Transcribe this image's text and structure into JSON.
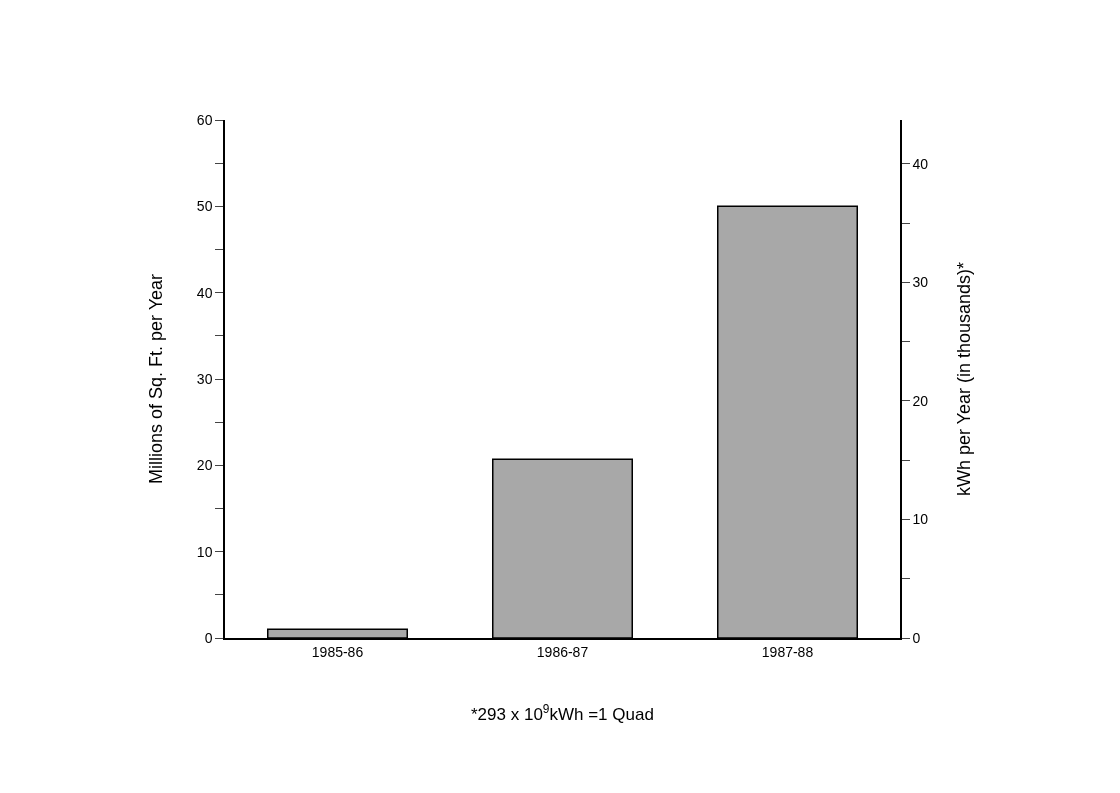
{
  "chart_data": {
    "type": "bar",
    "categories": [
      "1985-86",
      "1986-87",
      "1987-88"
    ],
    "values": [
      1.0,
      20.7,
      50.0
    ],
    "color": "#a8a8a8",
    "ylabel": "Millions of Sq. Ft. per Year",
    "y2label": "kWh per Year (in thousands)*",
    "ylim": [
      0,
      60
    ],
    "yticks": [
      0,
      {
        "value": 5,
        "label": null
      },
      10,
      {
        "value": 15,
        "label": null
      },
      20,
      {
        "value": 25,
        "label": null
      },
      30,
      {
        "value": 35,
        "label": null
      },
      40,
      {
        "value": 45,
        "label": null
      },
      50,
      {
        "value": 55,
        "label": null
      },
      60
    ],
    "y2lim": [
      0,
      43.7
    ],
    "y2ticks": [
      0,
      {
        "value": 5,
        "label": null
      },
      10,
      {
        "value": 15,
        "label": null
      },
      20,
      {
        "value": 25,
        "label": null
      },
      30,
      {
        "value": 35,
        "label": null
      },
      40
    ],
    "annotations": [
      "*293 x 10$^{9}$kWh =1 Quad"
    ]
  }
}
